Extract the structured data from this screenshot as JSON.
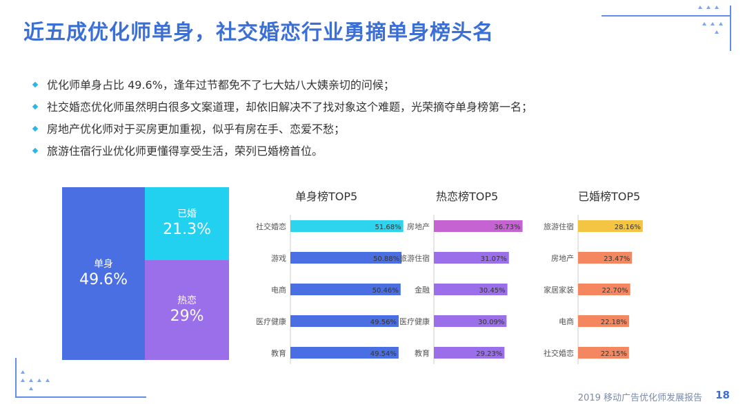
{
  "page": {
    "title": "近五成优化师单身，社交婚恋行业勇摘单身榜头名",
    "bullets": [
      "优化师单身占比 49.6%，逢年过节都免不了七大姑八大姨亲切的问候；",
      "社交婚恋优化师虽然明白很多文案道理，却依旧解决不了找对象这个难题，光荣摘夺单身榜第一名；",
      "房地产优化师对于买房更加重视，似乎有房在手、恋爱不愁；",
      "旅游住宿行业优化师更懂得享受生活，荣列已婚榜首位。"
    ],
    "footer": "2019 移动广告优化师发展报告",
    "page_number": "18"
  },
  "chart_data": [
    {
      "type": "treemap",
      "items": [
        {
          "name": "单身",
          "value": 49.6,
          "label": "49.6%",
          "color": "#4a6fe3"
        },
        {
          "name": "已婚",
          "value": 21.3,
          "label": "21.3%",
          "color": "#22d0f0"
        },
        {
          "name": "热恋",
          "value": 29,
          "label": "29%",
          "color": "#9a6fe9"
        }
      ]
    },
    {
      "type": "bar",
      "orientation": "horizontal",
      "title": "单身榜TOP5",
      "categories": [
        "社交婚恋",
        "游戏",
        "电商",
        "医疗健康",
        "教育"
      ],
      "values": [
        51.68,
        50.88,
        50.46,
        49.56,
        49.54
      ],
      "labels": [
        "51.68%",
        "50.88%",
        "50.46%",
        "49.56%",
        "49.54%"
      ],
      "colors": [
        "#2ed3ee",
        "#4a6fe3",
        "#4a6fe3",
        "#4a6fe3",
        "#4a6fe3"
      ]
    },
    {
      "type": "bar",
      "orientation": "horizontal",
      "title": "热恋榜TOP5",
      "categories": [
        "房地产",
        "旅游住宿",
        "金融",
        "医疗健康",
        "教育"
      ],
      "values": [
        36.73,
        31.07,
        30.45,
        30.09,
        29.23
      ],
      "labels": [
        "36.73%",
        "31.07%",
        "30.45%",
        "30.09%",
        "29.23%"
      ],
      "colors": [
        "#c663d3",
        "#9a6fe9",
        "#9a6fe9",
        "#9a6fe9",
        "#9a6fe9"
      ]
    },
    {
      "type": "bar",
      "orientation": "horizontal",
      "title": "已婚榜TOP5",
      "categories": [
        "旅游住宿",
        "房地产",
        "家居家装",
        "电商",
        "社交婚恋"
      ],
      "values": [
        28.16,
        23.47,
        22.7,
        22.18,
        22.15
      ],
      "labels": [
        "28.16%",
        "23.47%",
        "22.70%",
        "22.18%",
        "22.15%"
      ],
      "colors": [
        "#f4c542",
        "#f4875f",
        "#f4875f",
        "#f4875f",
        "#f4875f"
      ]
    }
  ]
}
